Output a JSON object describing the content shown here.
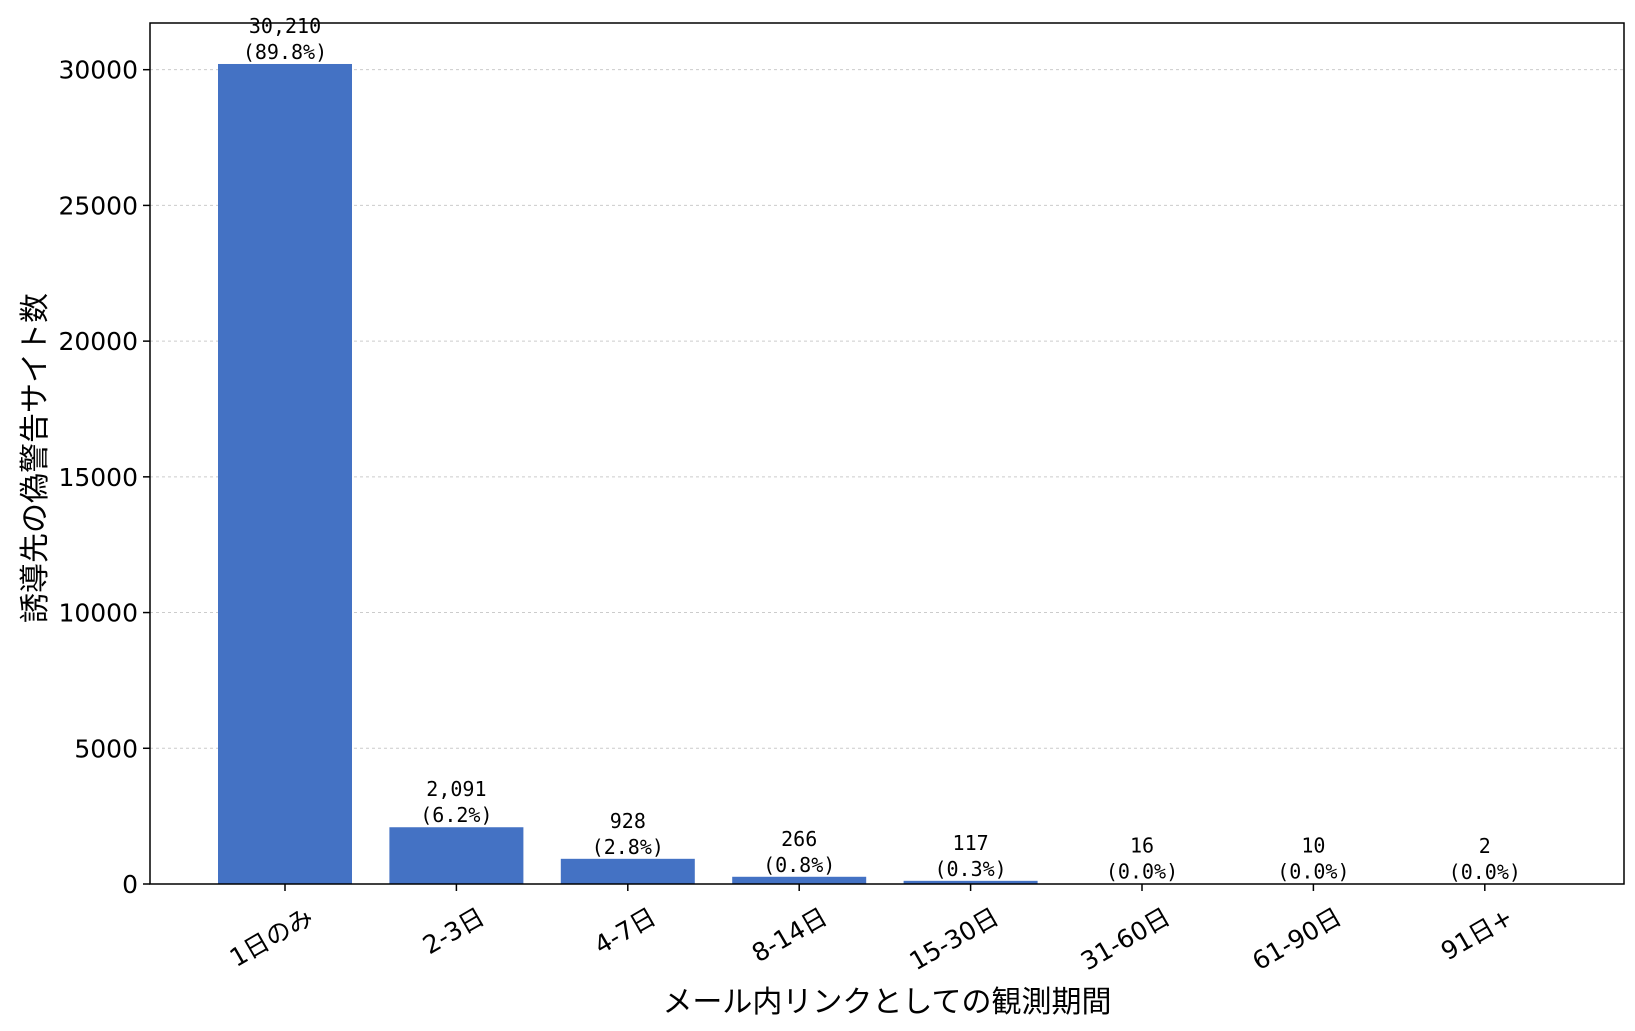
{
  "chart_data": {
    "type": "bar",
    "title": "",
    "xlabel": "メール内リンクとしての観測期間",
    "ylabel": "誘導先の偽警告サイト数",
    "categories": [
      "1日のみ",
      "2-3日",
      "4-7日",
      "8-14日",
      "15-30日",
      "31-60日",
      "61-90日",
      "91日+"
    ],
    "values": [
      30210,
      2091,
      928,
      266,
      117,
      16,
      10,
      2
    ],
    "value_labels": [
      "30,210",
      "2,091",
      "928",
      "266",
      "117",
      "16",
      "10",
      "2"
    ],
    "percent_labels": [
      "(89.8%)",
      "(6.2%)",
      "(2.8%)",
      "(0.8%)",
      "(0.3%)",
      "(0.0%)",
      "(0.0%)",
      "(0.0%)"
    ],
    "yticks": [
      0,
      5000,
      10000,
      15000,
      20000,
      25000,
      30000
    ],
    "ylim": [
      0,
      31720
    ],
    "grid": "y-dotted",
    "legend": "none",
    "bar_color": "#4472c4"
  }
}
